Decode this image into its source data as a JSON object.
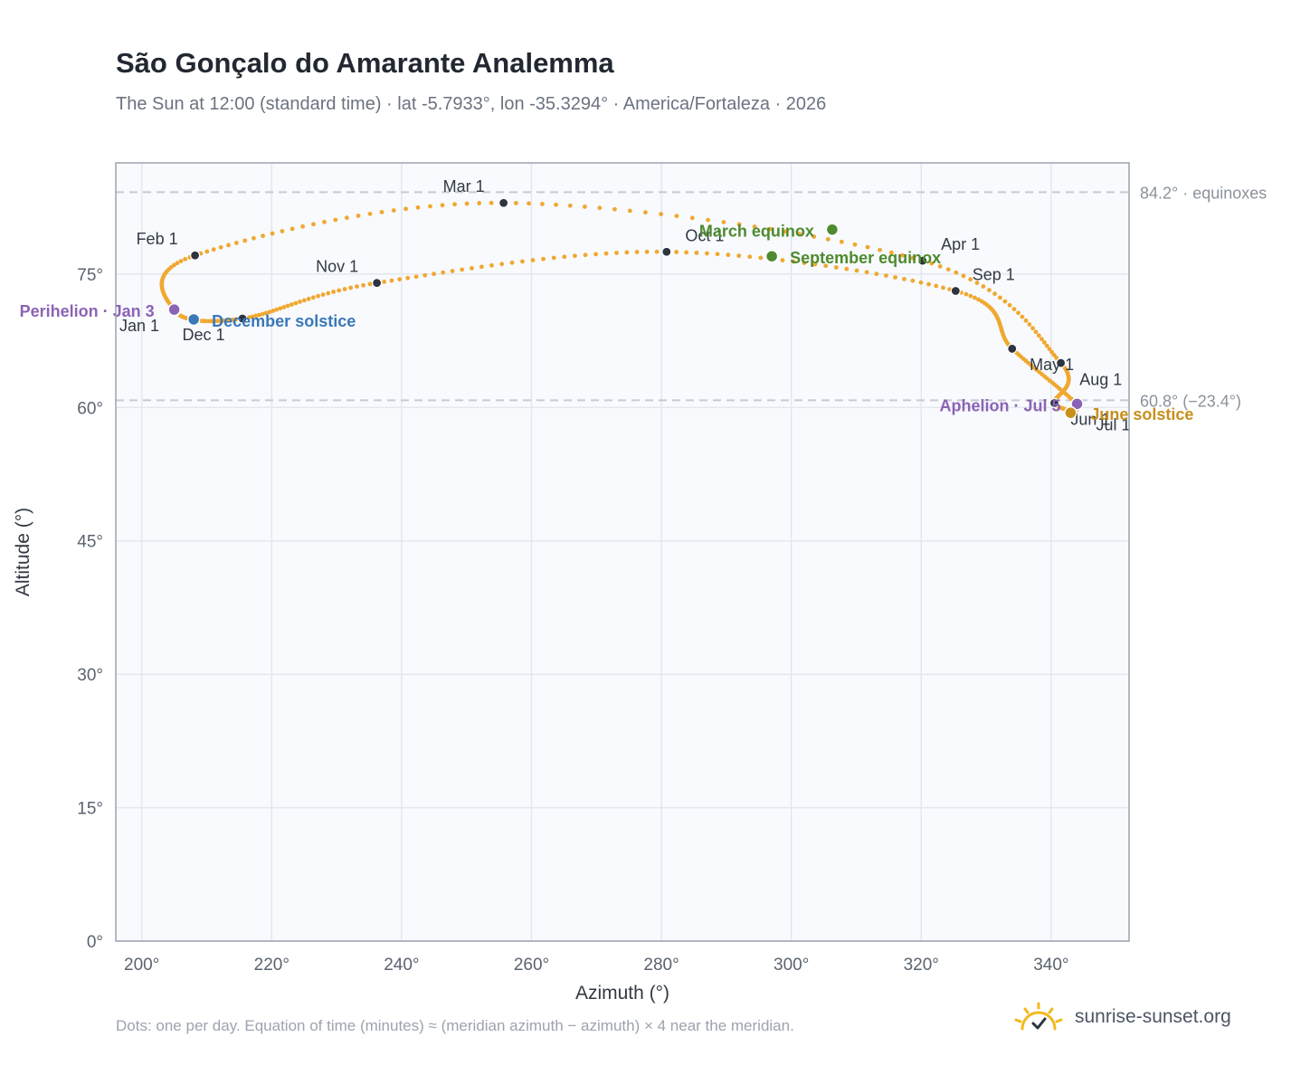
{
  "header": {
    "title": "São Gonçalo do Amarante Analemma",
    "subtitle": "The Sun at 12:00 (standard time) · lat -5.7933°, lon -35.3294° · America/Fortaleza · 2026"
  },
  "footer": {
    "note": "Dots: one per day. Equation of time (minutes) ≈ (meridian azimuth − azimuth) × 4 near the meridian.",
    "brand": "sunrise-sunset.org",
    "brand_icon": "sun-check-icon"
  },
  "colors": {
    "curve": "#f0a830",
    "month_marker": "#2d3440",
    "perihelion": "#8b63b5",
    "aphelion": "#8b63b5",
    "equinox": "#4e8a2e",
    "december_solstice": "#3a78b8",
    "june_solstice": "#c8901a",
    "plot_bg": "#f8fafd",
    "reference_line": "#c5cbd3"
  },
  "chart_data": {
    "type": "scatter",
    "xlabel": "Azimuth (°)",
    "ylabel": "Altitude (°)",
    "xlim": [
      196,
      352
    ],
    "ylim": [
      0,
      87.5
    ],
    "x_ticks": [
      200,
      220,
      240,
      260,
      280,
      300,
      320,
      340
    ],
    "y_ticks": [
      0,
      15,
      30,
      45,
      60,
      75
    ],
    "x_tick_labels": [
      "200°",
      "220°",
      "240°",
      "260°",
      "280°",
      "300°",
      "320°",
      "340°"
    ],
    "y_tick_labels": [
      "0°",
      "15°",
      "30°",
      "45°",
      "60°",
      "75°"
    ],
    "grid": true,
    "reference_lines": [
      {
        "y": 84.2,
        "label": "84.2° · equinoxes"
      },
      {
        "y": 60.8,
        "label": "60.8° (−23.4°)"
      }
    ],
    "analemma": {
      "name": "",
      "points_per_day": 1,
      "anchors": [
        {
          "date": "Jan 1",
          "az": 205.2,
          "alt": 70.8
        },
        {
          "date": "Feb 1",
          "az": 208.2,
          "alt": 77.1
        },
        {
          "date": "Mar 1",
          "az": 255.7,
          "alt": 83.0
        },
        {
          "date": "Apr 1",
          "az": 320.2,
          "alt": 76.5
        },
        {
          "date": "May 1",
          "az": 341.5,
          "alt": 65.0
        },
        {
          "date": "Jun 1",
          "az": 340.5,
          "alt": 60.5
        },
        {
          "date": "Jul 1",
          "az": 344.0,
          "alt": 60.3
        },
        {
          "date": "Aug 1",
          "az": 334.0,
          "alt": 66.6
        },
        {
          "date": "Sep 1",
          "az": 325.3,
          "alt": 73.1
        },
        {
          "date": "Oct 1",
          "az": 280.8,
          "alt": 77.5
        },
        {
          "date": "Nov 1",
          "az": 236.2,
          "alt": 74.0
        },
        {
          "date": "Dec 1",
          "az": 215.5,
          "alt": 70.0
        }
      ]
    },
    "month_markers": [
      {
        "label": "Jan 1",
        "az": 205.2,
        "alt": 70.8,
        "label_dx": -40,
        "label_dy": 22
      },
      {
        "label": "Feb 1",
        "az": 208.2,
        "alt": 77.1,
        "label_dx": -42,
        "label_dy": -12
      },
      {
        "label": "Mar 1",
        "az": 255.7,
        "alt": 83.0,
        "label_dx": -44,
        "label_dy": -12
      },
      {
        "label": "Apr 1",
        "az": 320.2,
        "alt": 76.5,
        "label_dx": 42,
        "label_dy": -12
      },
      {
        "label": "May 1",
        "az": 341.5,
        "alt": 65.0,
        "label_dx": -10,
        "label_dy": 8
      },
      {
        "label": "Jun 1",
        "az": 340.5,
        "alt": 60.5,
        "label_dx": 40,
        "label_dy": 24
      },
      {
        "label": "Jul 1",
        "az": 344.0,
        "alt": 60.3,
        "label_dx": 40,
        "label_dy": 28
      },
      {
        "label": "Aug 1",
        "az": 334.0,
        "alt": 66.6,
        "label_dx": 98,
        "label_dy": 40
      },
      {
        "label": "Sep 1",
        "az": 325.3,
        "alt": 73.1,
        "label_dx": 42,
        "label_dy": -12
      },
      {
        "label": "Oct 1",
        "az": 280.8,
        "alt": 77.5,
        "label_dx": 42,
        "label_dy": -12
      },
      {
        "label": "Nov 1",
        "az": 236.2,
        "alt": 74.0,
        "label_dx": -44,
        "label_dy": -12
      },
      {
        "label": "Dec 1",
        "az": 215.5,
        "alt": 70.0,
        "label_dx": -43,
        "label_dy": 24
      }
    ],
    "events": [
      {
        "label": "Perihelion · Jan 3",
        "az": 205.0,
        "alt": 71.0,
        "color": "#8b63b5",
        "anchor": "end",
        "label_dx": -22,
        "label_dy": 8
      },
      {
        "label": "December solstice",
        "az": 208.0,
        "alt": 69.9,
        "color": "#3a78b8",
        "anchor": "start",
        "label_dx": 20,
        "label_dy": 8
      },
      {
        "label": "March equinox",
        "az": 306.3,
        "alt": 80.0,
        "color": "#4e8a2e",
        "anchor": "end",
        "label_dx": -20,
        "label_dy": 8
      },
      {
        "label": "September equinox",
        "az": 297.0,
        "alt": 77.0,
        "color": "#4e8a2e",
        "anchor": "start",
        "label_dx": 20,
        "label_dy": 8
      },
      {
        "label": "Aphelion · Jul 5",
        "az": 344.0,
        "alt": 60.4,
        "color": "#8b63b5",
        "anchor": "end",
        "label_dx": -18,
        "label_dy": 8
      },
      {
        "label": "June solstice",
        "az": 343.0,
        "alt": 59.4,
        "color": "#c8901a",
        "anchor": "start",
        "label_dx": 22,
        "label_dy": 8
      }
    ]
  }
}
